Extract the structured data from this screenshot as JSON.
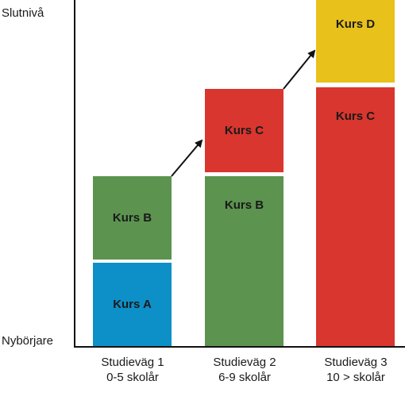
{
  "y_axis": {
    "top_label": "Slutnivå",
    "bottom_label": "Nybörjare"
  },
  "paths": [
    {
      "line1": "Studieväg 1",
      "line2": "0-5 skolår",
      "blocks": [
        "Kurs A",
        "Kurs B"
      ]
    },
    {
      "line1": "Studieväg 2",
      "line2": "6-9 skolår",
      "blocks": [
        "Kurs B",
        "Kurs C"
      ]
    },
    {
      "line1": "Studieväg 3",
      "line2": "10 > skolår",
      "blocks": [
        "Kurs C",
        "Kurs D"
      ]
    }
  ],
  "colors": {
    "kurs_a": "#0d8fc7",
    "kurs_b": "#5b934f",
    "kurs_c": "#d8362e",
    "kurs_d": "#e8c11a"
  }
}
